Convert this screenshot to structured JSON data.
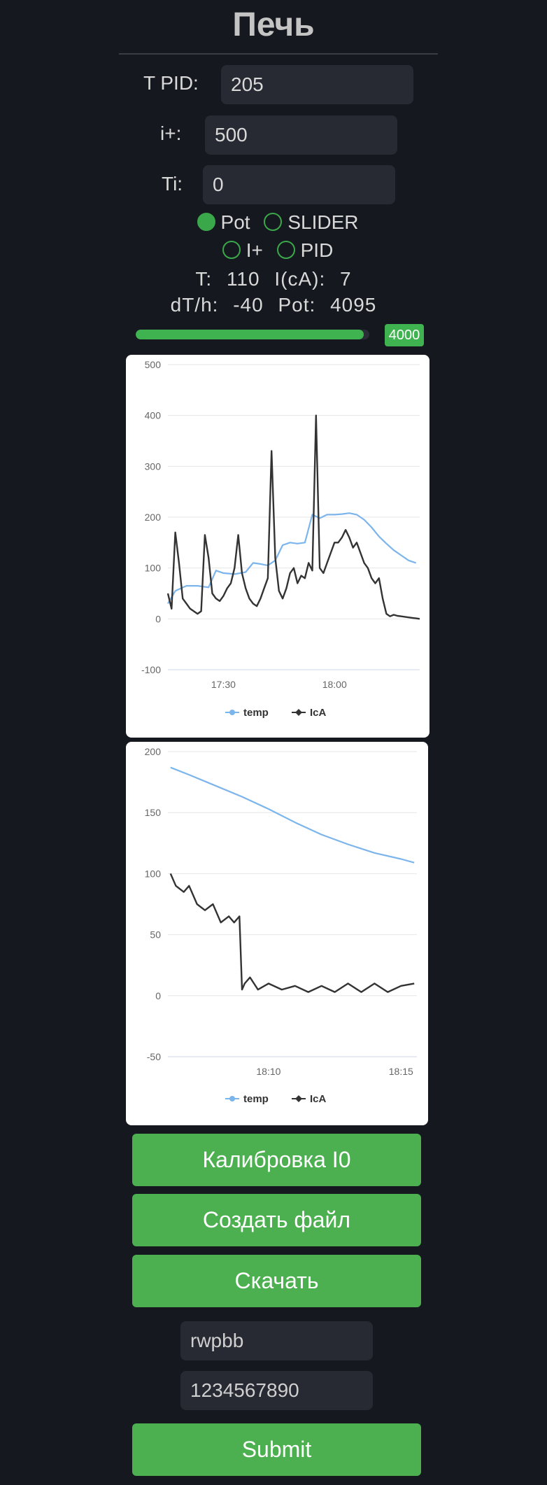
{
  "page": {
    "title": "Печь"
  },
  "fields": {
    "tpid": {
      "label": "T PID:",
      "value": "205"
    },
    "iplus": {
      "label": "i+:",
      "value": "500"
    },
    "ti": {
      "label": "Ti:",
      "value": "0"
    }
  },
  "modes": {
    "selected": "Pot",
    "options": [
      "Pot",
      "SLIDER",
      "I+",
      "PID"
    ]
  },
  "status": {
    "t_label": "T:",
    "t_value": "110",
    "i_label": "I(cA):",
    "i_value": "7",
    "dth_label": "dT/h:",
    "dth_value": "-40",
    "pot_label": "Pot:",
    "pot_value": "4095"
  },
  "slider": {
    "value": 4000,
    "max": 4095,
    "label": "4000"
  },
  "colors": {
    "accent": "#4caf50",
    "temp_series": "#7cb5ec",
    "ica_series": "#333333"
  },
  "chart_data": [
    {
      "type": "line",
      "title": "",
      "xlabel": "",
      "ylabel": "",
      "ylim": [
        -100,
        500
      ],
      "yticks": [
        -100,
        0,
        100,
        200,
        300,
        400,
        500
      ],
      "xticks": [
        "17:30",
        "18:00"
      ],
      "xrange_min": [
        1035,
        1103
      ],
      "xticks_min": [
        1050,
        1080
      ],
      "legend": "bottom",
      "grid": true,
      "series": [
        {
          "name": "temp",
          "color": "#7cb5ec",
          "x": [
            1035,
            1037,
            1040,
            1043,
            1046,
            1048,
            1050,
            1053,
            1056,
            1058,
            1060,
            1062,
            1064,
            1066,
            1068,
            1070,
            1072,
            1074,
            1076,
            1078,
            1080,
            1082,
            1084,
            1086,
            1088,
            1090,
            1092,
            1094,
            1096,
            1098,
            1100,
            1102
          ],
          "y": [
            30,
            55,
            65,
            65,
            62,
            95,
            90,
            88,
            92,
            110,
            108,
            105,
            115,
            145,
            150,
            148,
            150,
            205,
            198,
            205,
            205,
            206,
            208,
            205,
            195,
            180,
            162,
            148,
            135,
            125,
            115,
            110
          ]
        },
        {
          "name": "IcA",
          "color": "#333333",
          "x": [
            1035,
            1036,
            1037,
            1038,
            1039,
            1040,
            1041,
            1043,
            1044,
            1045,
            1046,
            1047,
            1048,
            1049,
            1050,
            1051,
            1052,
            1053,
            1054,
            1055,
            1056,
            1057,
            1058,
            1059,
            1060,
            1061,
            1062,
            1063,
            1064,
            1065,
            1066,
            1067,
            1068,
            1069,
            1070,
            1071,
            1072,
            1073,
            1074,
            1075,
            1076,
            1077,
            1078,
            1079,
            1080,
            1081,
            1082,
            1083,
            1084,
            1085,
            1086,
            1087,
            1088,
            1089,
            1090,
            1091,
            1092,
            1093,
            1094,
            1095,
            1096,
            1097,
            1098,
            1099,
            1100,
            1101,
            1102,
            1103
          ],
          "y": [
            50,
            20,
            170,
            110,
            40,
            30,
            20,
            10,
            15,
            165,
            120,
            50,
            40,
            35,
            45,
            60,
            70,
            100,
            165,
            90,
            60,
            40,
            30,
            25,
            40,
            60,
            80,
            330,
            120,
            55,
            40,
            60,
            90,
            100,
            70,
            85,
            80,
            110,
            95,
            400,
            100,
            90,
            110,
            130,
            150,
            150,
            160,
            175,
            160,
            140,
            150,
            130,
            110,
            100,
            80,
            70,
            80,
            40,
            10,
            5,
            8,
            6,
            5,
            4,
            3,
            2,
            1,
            0
          ]
        }
      ]
    },
    {
      "type": "line",
      "title": "",
      "xlabel": "",
      "ylabel": "",
      "ylim": [
        -50,
        200
      ],
      "yticks": [
        -50,
        0,
        50,
        100,
        150,
        200
      ],
      "xticks": [
        "18:10",
        "18:15"
      ],
      "xrange_min": [
        1086.2,
        1095.6
      ],
      "xticks_min": [
        1090,
        1095
      ],
      "legend": "bottom",
      "grid": true,
      "series": [
        {
          "name": "temp",
          "color": "#7cb5ec",
          "x": [
            1086.3,
            1087,
            1088,
            1089,
            1090,
            1091,
            1092,
            1093,
            1094,
            1095,
            1095.5
          ],
          "y": [
            187,
            181,
            172,
            163,
            153,
            142,
            132,
            124,
            117,
            112,
            109
          ]
        },
        {
          "name": "IcA",
          "color": "#333333",
          "x": [
            1086.3,
            1086.5,
            1086.8,
            1087,
            1087.3,
            1087.6,
            1087.9,
            1088.2,
            1088.5,
            1088.7,
            1088.9,
            1089.0,
            1089.1,
            1089.3,
            1089.6,
            1090,
            1090.5,
            1091,
            1091.5,
            1092,
            1092.5,
            1093,
            1093.5,
            1094,
            1094.5,
            1095,
            1095.5
          ],
          "y": [
            100,
            90,
            85,
            90,
            75,
            70,
            75,
            60,
            65,
            60,
            65,
            5,
            10,
            15,
            5,
            10,
            5,
            8,
            3,
            8,
            3,
            10,
            3,
            10,
            3,
            8,
            10
          ]
        }
      ]
    }
  ],
  "buttons": {
    "calibrate": "Калибровка I0",
    "create_file": "Создать файл",
    "download": "Скачать",
    "submit": "Submit"
  },
  "wifi": {
    "ssid": "rwpbb",
    "password": "1234567890"
  }
}
